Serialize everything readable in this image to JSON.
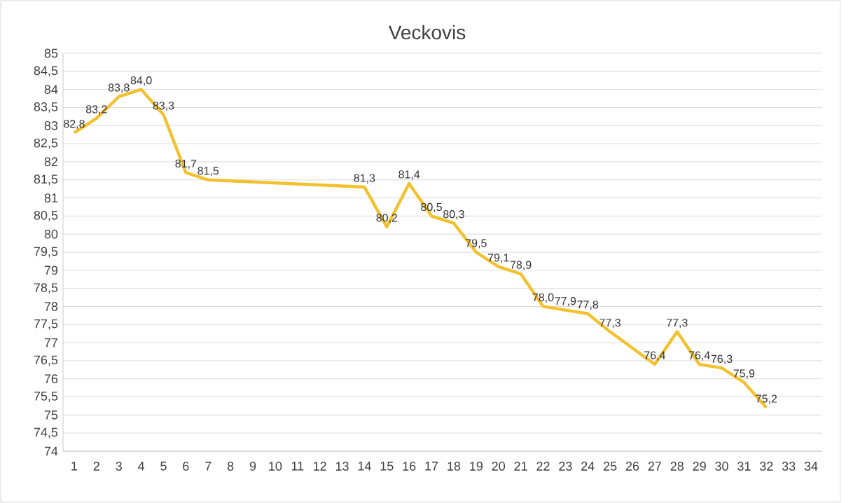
{
  "chart_data": {
    "type": "line",
    "title": "Veckovis",
    "categories": [
      "1",
      "2",
      "3",
      "4",
      "5",
      "6",
      "7",
      "8",
      "9",
      "10",
      "11",
      "12",
      "13",
      "14",
      "15",
      "16",
      "17",
      "18",
      "19",
      "20",
      "21",
      "22",
      "23",
      "24",
      "25",
      "26",
      "27",
      "28",
      "29",
      "30",
      "31",
      "32",
      "33",
      "34"
    ],
    "values": [
      82.8,
      83.2,
      83.8,
      84.0,
      83.3,
      81.7,
      81.5,
      null,
      null,
      null,
      null,
      null,
      null,
      81.3,
      80.2,
      81.4,
      80.5,
      80.3,
      79.5,
      79.1,
      78.9,
      78.0,
      77.9,
      77.8,
      77.3,
      null,
      76.4,
      77.3,
      76.4,
      76.3,
      75.9,
      75.2,
      null,
      null
    ],
    "value_labels": [
      "82,8",
      "83,2",
      "83,8",
      "84,0",
      "83,3",
      "81,7",
      "81,5",
      null,
      null,
      null,
      null,
      null,
      null,
      "81,3",
      "80,2",
      "81,4",
      "80,5",
      "80,3",
      "79,5",
      "79,1",
      "78,9",
      "78,0",
      "77,9",
      "77,8",
      "77,3",
      null,
      "76,4",
      "77,3",
      "76,4",
      "76,3",
      "75,9",
      "75,2",
      null,
      null
    ],
    "color": "#f2c12e",
    "ylim": [
      74,
      85
    ],
    "yticks": [
      74,
      {
        "value": 74.5,
        "label": "74,5"
      },
      75,
      {
        "value": 75.5,
        "label": "75,5"
      },
      76,
      {
        "value": 76.5,
        "label": "76,5"
      },
      77,
      {
        "value": 77.5,
        "label": "77,5"
      },
      78,
      {
        "value": 78.5,
        "label": "78,5"
      },
      79,
      {
        "value": 79.5,
        "label": "79,5"
      },
      80,
      {
        "value": 80.5,
        "label": "80,5"
      },
      81,
      {
        "value": 81.5,
        "label": "81,5"
      },
      82,
      {
        "value": 82.5,
        "label": "82,5"
      },
      83,
      {
        "value": 83.5,
        "label": "83,5"
      },
      84,
      {
        "value": 84.5,
        "label": "84,5"
      },
      85
    ],
    "grid": "y",
    "line_style": "solid"
  }
}
